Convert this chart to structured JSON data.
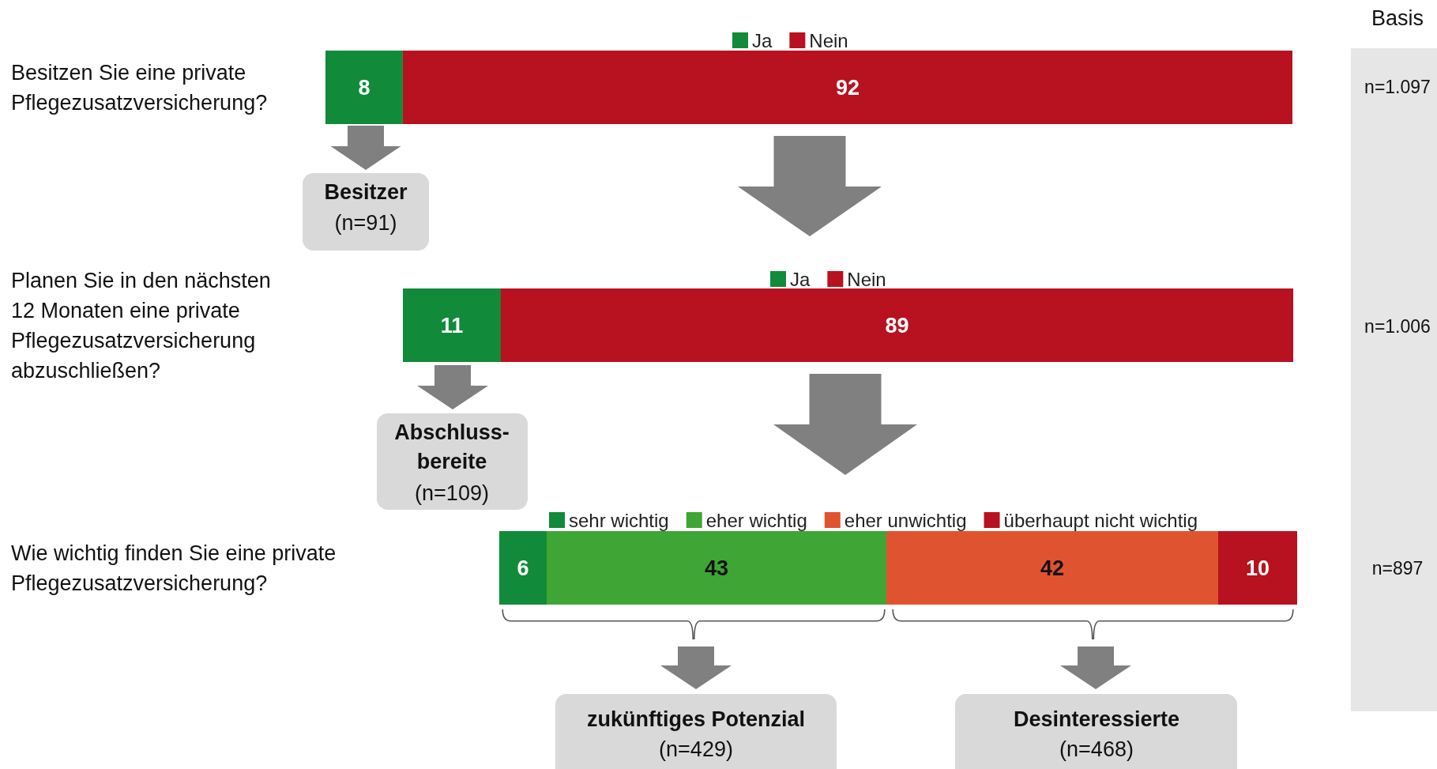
{
  "chart_data": [
    {
      "type": "bar",
      "orientation": "horizontal",
      "stacked": true,
      "categories": [
        "Besitzen Sie eine private Pflegezusatzversicherung?"
      ],
      "series": [
        {
          "name": "Ja",
          "color": "#118a3a",
          "values": [
            8
          ]
        },
        {
          "name": "Nein",
          "color": "#b8111f",
          "values": [
            92
          ]
        }
      ],
      "xlim": [
        0,
        100
      ],
      "tick_labels": "y",
      "data_labels": true,
      "legend": "top",
      "annotations": [
        "Basis",
        "n=1.097",
        "Besitzer",
        "(n=91)"
      ]
    },
    {
      "type": "bar",
      "orientation": "horizontal",
      "stacked": true,
      "categories": [
        "Planen Sie in den nächsten 12 Monaten eine private Pflegezusatzversicherung abzuschließen?"
      ],
      "series": [
        {
          "name": "Ja",
          "color": "#118a3a",
          "values": [
            11
          ]
        },
        {
          "name": "Nein",
          "color": "#b8111f",
          "values": [
            89
          ]
        }
      ],
      "xlim": [
        0,
        100
      ],
      "tick_labels": "y",
      "data_labels": true,
      "legend": "top",
      "annotations": [
        "n=1.006",
        "Abschluss-bereite",
        "(n=109)"
      ]
    },
    {
      "type": "bar",
      "orientation": "horizontal",
      "stacked": true,
      "categories": [
        "Wie wichtig finden Sie eine private Pflegezusatzversicherung?"
      ],
      "series": [
        {
          "name": "sehr wichtig",
          "color": "#118a3a",
          "values": [
            6
          ]
        },
        {
          "name": "eher wichtig",
          "color": "#3fa535",
          "values": [
            43
          ]
        },
        {
          "name": "eher unwichtig",
          "color": "#e05330",
          "values": [
            42
          ]
        },
        {
          "name": "überhaupt nicht wichtig",
          "color": "#b8111f",
          "values": [
            10
          ]
        }
      ],
      "xlim": [
        0,
        101
      ],
      "tick_labels": "y",
      "data_labels": true,
      "legend": "top",
      "annotations": [
        "n=897",
        "zukünftiges Potenzial",
        "(n=429)",
        "Desinteressierte",
        "(n=468)"
      ]
    }
  ]
}
